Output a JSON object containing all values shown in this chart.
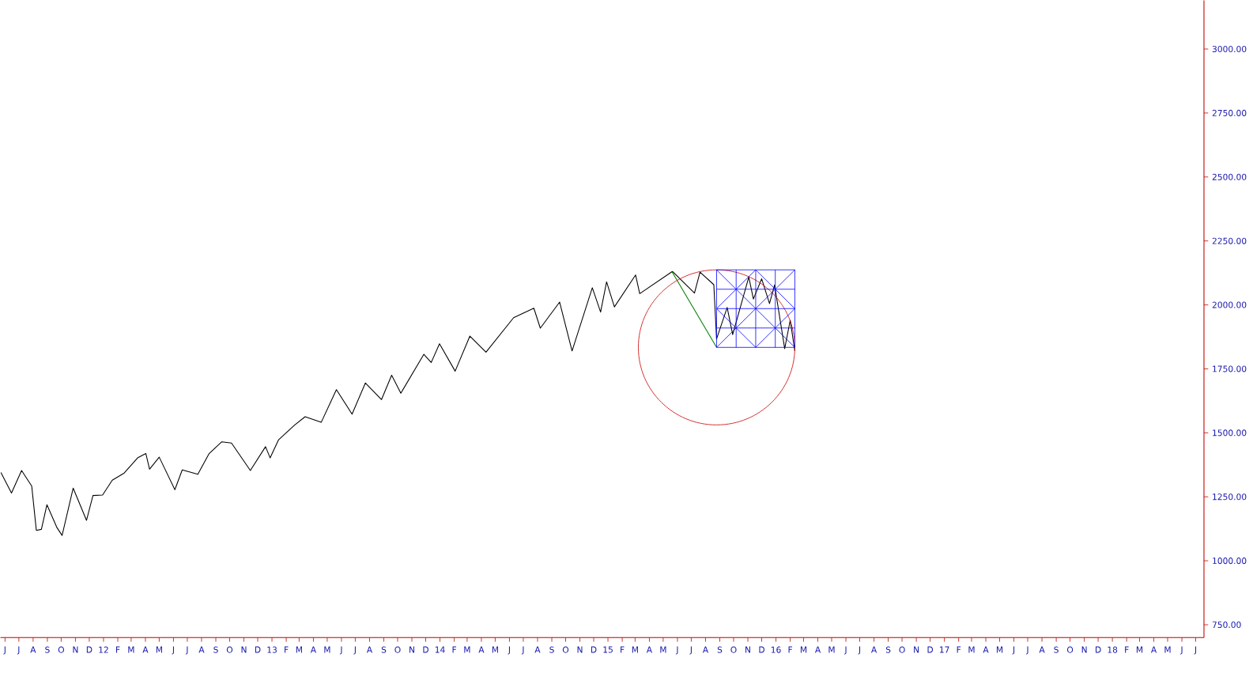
{
  "chart_data": {
    "type": "line",
    "xlim": [
      "2011-05-22",
      "2018-07-19"
    ],
    "ylim": [
      700,
      3190
    ],
    "xticks": [
      {
        "value": "2011-06-01",
        "label": "J"
      },
      {
        "value": "2011-07-01",
        "label": "J"
      },
      {
        "value": "2011-08-01",
        "label": "A"
      },
      {
        "value": "2011-09-01",
        "label": "S"
      },
      {
        "value": "2011-10-01",
        "label": "O"
      },
      {
        "value": "2011-11-01",
        "label": "N"
      },
      {
        "value": "2011-12-01",
        "label": "D"
      },
      {
        "value": "2012-01-01",
        "label": "12"
      },
      {
        "value": "2012-02-01",
        "label": "F"
      },
      {
        "value": "2012-03-01",
        "label": "M"
      },
      {
        "value": "2012-04-01",
        "label": "A"
      },
      {
        "value": "2012-05-01",
        "label": "M"
      },
      {
        "value": "2012-06-01",
        "label": "J"
      },
      {
        "value": "2012-07-01",
        "label": "J"
      },
      {
        "value": "2012-08-01",
        "label": "A"
      },
      {
        "value": "2012-09-01",
        "label": "S"
      },
      {
        "value": "2012-10-01",
        "label": "O"
      },
      {
        "value": "2012-11-01",
        "label": "N"
      },
      {
        "value": "2012-12-01",
        "label": "D"
      },
      {
        "value": "2013-01-01",
        "label": "13"
      },
      {
        "value": "2013-02-01",
        "label": "F"
      },
      {
        "value": "2013-03-01",
        "label": "M"
      },
      {
        "value": "2013-04-01",
        "label": "A"
      },
      {
        "value": "2013-05-01",
        "label": "M"
      },
      {
        "value": "2013-06-01",
        "label": "J"
      },
      {
        "value": "2013-07-01",
        "label": "J"
      },
      {
        "value": "2013-08-01",
        "label": "A"
      },
      {
        "value": "2013-09-01",
        "label": "S"
      },
      {
        "value": "2013-10-01",
        "label": "O"
      },
      {
        "value": "2013-11-01",
        "label": "N"
      },
      {
        "value": "2013-12-01",
        "label": "D"
      },
      {
        "value": "2014-01-01",
        "label": "14"
      },
      {
        "value": "2014-02-01",
        "label": "F"
      },
      {
        "value": "2014-03-01",
        "label": "M"
      },
      {
        "value": "2014-04-01",
        "label": "A"
      },
      {
        "value": "2014-05-01",
        "label": "M"
      },
      {
        "value": "2014-06-01",
        "label": "J"
      },
      {
        "value": "2014-07-01",
        "label": "J"
      },
      {
        "value": "2014-08-01",
        "label": "A"
      },
      {
        "value": "2014-09-01",
        "label": "S"
      },
      {
        "value": "2014-10-01",
        "label": "O"
      },
      {
        "value": "2014-11-01",
        "label": "N"
      },
      {
        "value": "2014-12-01",
        "label": "D"
      },
      {
        "value": "2015-01-01",
        "label": "15"
      },
      {
        "value": "2015-02-01",
        "label": "F"
      },
      {
        "value": "2015-03-01",
        "label": "M"
      },
      {
        "value": "2015-04-01",
        "label": "A"
      },
      {
        "value": "2015-05-01",
        "label": "M"
      },
      {
        "value": "2015-06-01",
        "label": "J"
      },
      {
        "value": "2015-07-01",
        "label": "J"
      },
      {
        "value": "2015-08-01",
        "label": "A"
      },
      {
        "value": "2015-09-01",
        "label": "S"
      },
      {
        "value": "2015-10-01",
        "label": "O"
      },
      {
        "value": "2015-11-01",
        "label": "N"
      },
      {
        "value": "2015-12-01",
        "label": "D"
      },
      {
        "value": "2016-01-01",
        "label": "16"
      },
      {
        "value": "2016-02-01",
        "label": "F"
      },
      {
        "value": "2016-03-01",
        "label": "M"
      },
      {
        "value": "2016-04-01",
        "label": "A"
      },
      {
        "value": "2016-05-01",
        "label": "M"
      },
      {
        "value": "2016-06-01",
        "label": "J"
      },
      {
        "value": "2016-07-01",
        "label": "J"
      },
      {
        "value": "2016-08-01",
        "label": "A"
      },
      {
        "value": "2016-09-01",
        "label": "S"
      },
      {
        "value": "2016-10-01",
        "label": "O"
      },
      {
        "value": "2016-11-01",
        "label": "N"
      },
      {
        "value": "2016-12-01",
        "label": "D"
      },
      {
        "value": "2017-01-01",
        "label": "17"
      },
      {
        "value": "2017-02-01",
        "label": "F"
      },
      {
        "value": "2017-03-01",
        "label": "M"
      },
      {
        "value": "2017-04-01",
        "label": "A"
      },
      {
        "value": "2017-05-01",
        "label": "M"
      },
      {
        "value": "2017-06-01",
        "label": "J"
      },
      {
        "value": "2017-07-01",
        "label": "J"
      },
      {
        "value": "2017-08-01",
        "label": "A"
      },
      {
        "value": "2017-09-01",
        "label": "S"
      },
      {
        "value": "2017-10-01",
        "label": "O"
      },
      {
        "value": "2017-11-01",
        "label": "N"
      },
      {
        "value": "2017-12-01",
        "label": "D"
      },
      {
        "value": "2018-01-01",
        "label": "18"
      },
      {
        "value": "2018-02-01",
        "label": "F"
      },
      {
        "value": "2018-03-01",
        "label": "M"
      },
      {
        "value": "2018-04-01",
        "label": "A"
      },
      {
        "value": "2018-05-01",
        "label": "M"
      },
      {
        "value": "2018-06-01",
        "label": "J"
      },
      {
        "value": "2018-07-01",
        "label": "J"
      }
    ],
    "yticks": [
      {
        "value": 750,
        "label": "750.00"
      },
      {
        "value": 1000,
        "label": "1000.00"
      },
      {
        "value": 1250,
        "label": "1250.00"
      },
      {
        "value": 1500,
        "label": "1500.00"
      },
      {
        "value": 1750,
        "label": "1750.00"
      },
      {
        "value": 2000,
        "label": "2000.00"
      },
      {
        "value": 2250,
        "label": "2250.00"
      },
      {
        "value": 2500,
        "label": "2500.00"
      },
      {
        "value": 2750,
        "label": "2750.00"
      },
      {
        "value": 3000,
        "label": "3000.00"
      }
    ],
    "series": [
      {
        "color": "#000000",
        "x": [
          "2011-05-23",
          "2011-06-15",
          "2011-07-07",
          "2011-07-29",
          "2011-08-08",
          "2011-08-19",
          "2011-08-31",
          "2011-09-22",
          "2011-10-03",
          "2011-10-27",
          "2011-11-25",
          "2011-12-09",
          "2011-12-30",
          "2012-01-20",
          "2012-02-15",
          "2012-03-15",
          "2012-04-02",
          "2012-04-10",
          "2012-05-01",
          "2012-06-04",
          "2012-06-20",
          "2012-07-24",
          "2012-08-17",
          "2012-09-14",
          "2012-10-05",
          "2012-11-15",
          "2012-12-18",
          "2012-12-28",
          "2013-01-15",
          "2013-02-19",
          "2013-03-14",
          "2013-04-18",
          "2013-05-21",
          "2013-06-24",
          "2013-07-23",
          "2013-08-27",
          "2013-09-18",
          "2013-10-08",
          "2013-11-27",
          "2013-12-13",
          "2013-12-31",
          "2014-02-03",
          "2014-03-07",
          "2014-04-11",
          "2014-06-10",
          "2014-07-24",
          "2014-08-07",
          "2014-09-18",
          "2014-10-15",
          "2014-11-28",
          "2014-12-16",
          "2014-12-29",
          "2015-01-15",
          "2015-03-02",
          "2015-03-11",
          "2015-05-21",
          "2015-07-08",
          "2015-07-20",
          "2015-08-19",
          "2015-08-25",
          "2015-09-17",
          "2015-09-29",
          "2015-11-03",
          "2015-11-13",
          "2015-12-01",
          "2015-12-18",
          "2015-12-29",
          "2016-01-20",
          "2016-02-01",
          "2016-02-11"
        ],
        "values": [
          1345,
          1265,
          1353,
          1292,
          1119,
          1123,
          1219,
          1129,
          1099,
          1284,
          1158,
          1255,
          1257,
          1315,
          1343,
          1402,
          1419,
          1358,
          1405,
          1278,
          1355,
          1338,
          1418,
          1465,
          1460,
          1353,
          1446,
          1402,
          1472,
          1530,
          1563,
          1541,
          1669,
          1573,
          1695,
          1630,
          1725,
          1655,
          1807,
          1775,
          1848,
          1741,
          1878,
          1815,
          1950,
          1987,
          1909,
          2011,
          1820,
          2067,
          1972,
          2090,
          1992,
          2117,
          2044,
          2131,
          2046,
          2128,
          2079,
          1867,
          1990,
          1884,
          2109,
          2023,
          2102,
          2005,
          2078,
          1829,
          1940,
          1820
        ]
      },
      {
        "color": "#008000",
        "x": [
          "2015-05-20",
          "2015-08-25"
        ],
        "values": [
          2130,
          1834
        ]
      }
    ]
  }
}
